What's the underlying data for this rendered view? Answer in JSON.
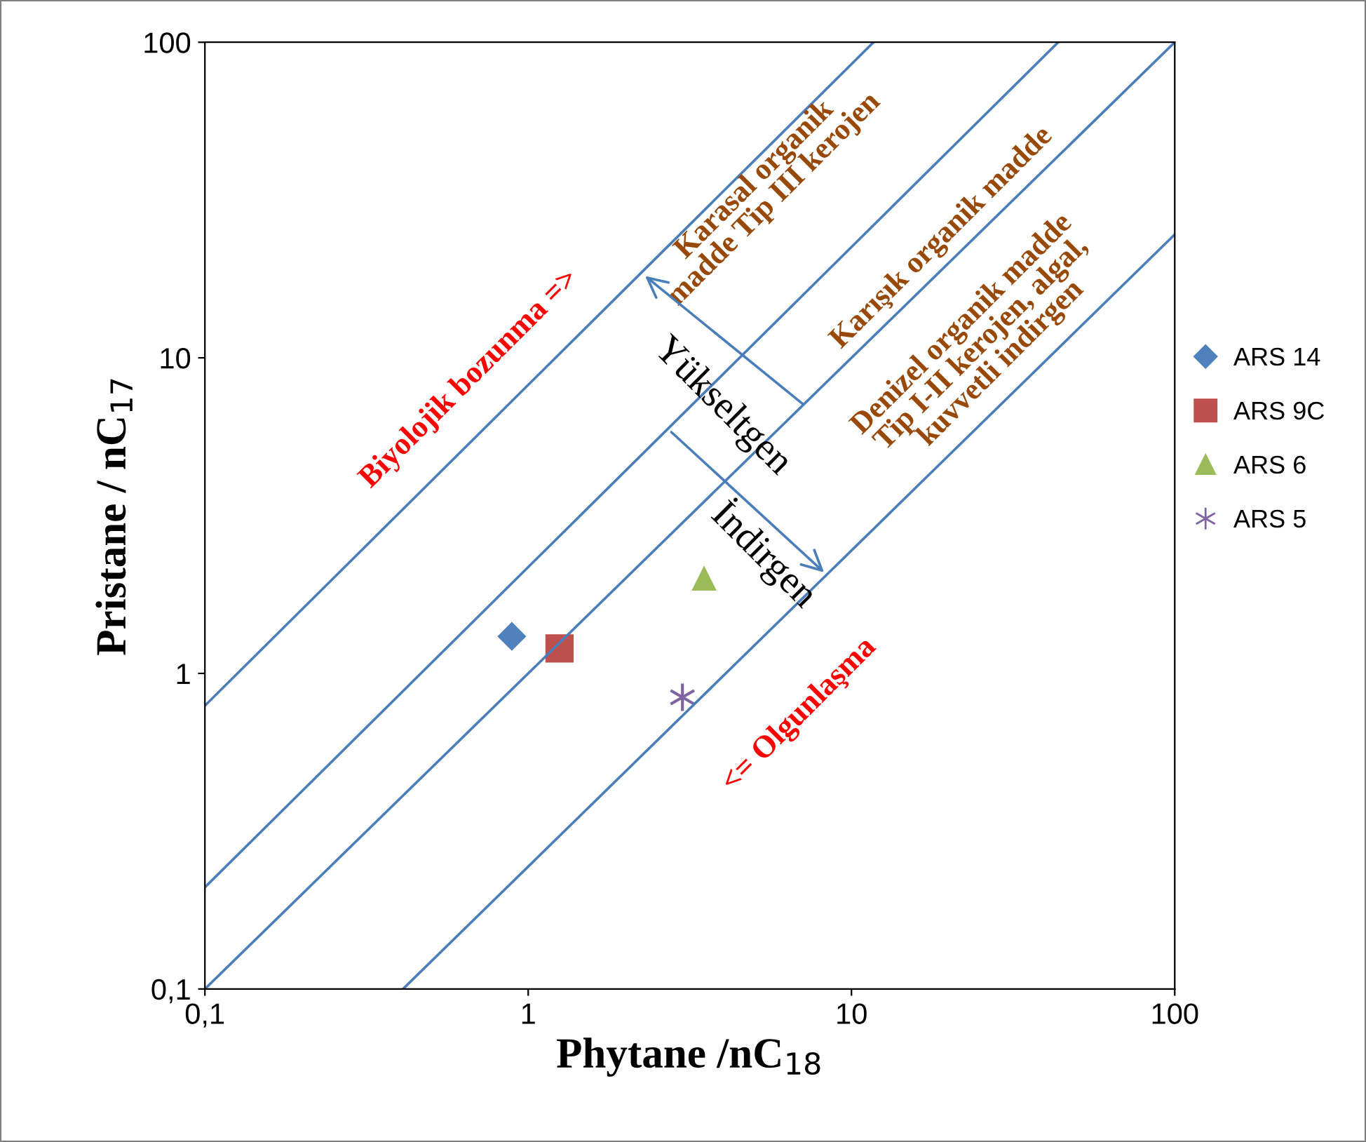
{
  "chart_data": {
    "type": "scatter",
    "xlabel": "Phytane /nC$_{18}$",
    "ylabel": "Pristane / nC$_{17}$",
    "log": "xy",
    "xlim": [
      0.1,
      100
    ],
    "ylim": [
      0.1,
      100
    ],
    "xticks": [
      {
        "value": 0.1,
        "label": "0,1"
      },
      1,
      10,
      100
    ],
    "yticks": [
      {
        "value": 0.1,
        "label": "0,1"
      },
      1,
      10,
      100
    ],
    "grid": false,
    "legend": "right",
    "series": [
      {
        "name": "ARS 14",
        "color": "#4f81bd",
        "marker": "diamond",
        "x": [
          0.89
        ],
        "values": [
          1.31
        ]
      },
      {
        "name": "ARS 9C",
        "color": "#c0504d",
        "marker": "square",
        "x": [
          1.25
        ],
        "values": [
          1.2
        ]
      },
      {
        "name": "ARS 6",
        "color": "#9bbb59",
        "marker": "triangle",
        "x": [
          3.5
        ],
        "values": [
          2.0
        ]
      },
      {
        "name": "ARS 5",
        "color": "#8064a2",
        "marker": "cross",
        "x": [
          3.0
        ],
        "values": [
          0.84
        ]
      },
      {
        "type": "line",
        "color": "#4a7ebb",
        "x": [
          0.1,
          11.7
        ],
        "values": [
          0.79,
          100
        ]
      },
      {
        "type": "line",
        "color": "#4a7ebb",
        "x": [
          0.1,
          43.6
        ],
        "values": [
          0.21,
          100
        ]
      },
      {
        "type": "line",
        "color": "#4a7ebb",
        "x": [
          0.1,
          100
        ],
        "values": [
          0.1,
          100
        ]
      },
      {
        "type": "line",
        "color": "#4a7ebb",
        "x": [
          0.41,
          100
        ],
        "values": [
          0.1,
          24.6
        ]
      }
    ],
    "annotations": [
      "Karasal organik\nmadde Tip III kerojen",
      "Karışık organik madde",
      "Denizel organik madde\nTip I-II kerojen, algal,\nkuvvetli indirgen",
      "Biyolojik bozunma =>",
      "<= Olgunlaşma",
      {
        "text": "Yükseltgen",
        "x": 2.25,
        "y": 18.5
      },
      {
        "text": "İndirgen",
        "x": 8.4,
        "y": 2.05
      }
    ]
  }
}
